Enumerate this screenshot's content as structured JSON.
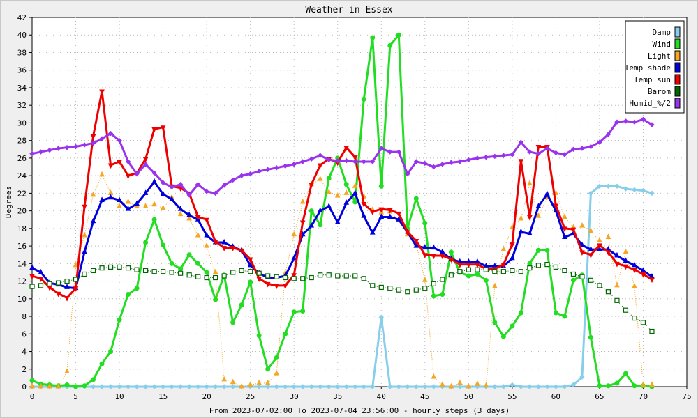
{
  "chart_data": {
    "type": "line",
    "title": "Weather in Essex",
    "xlabel": "From 2023-07-02:00 To 2023-07-04 23:56:00 - hourly steps (3 days)",
    "ylabel": "Degrees",
    "xlim": [
      0,
      75
    ],
    "ylim": [
      0,
      42
    ],
    "x_ticks": [
      0,
      5,
      10,
      15,
      20,
      25,
      30,
      35,
      40,
      45,
      50,
      55,
      60,
      65,
      70,
      75
    ],
    "y_ticks": [
      0,
      2,
      4,
      6,
      8,
      10,
      12,
      14,
      16,
      18,
      20,
      22,
      24,
      26,
      28,
      30,
      32,
      34,
      36,
      38,
      40,
      42
    ],
    "grid": "dotted",
    "legend_position": "top-right",
    "x": [
      0,
      1,
      2,
      3,
      4,
      5,
      6,
      7,
      8,
      9,
      10,
      11,
      12,
      13,
      14,
      15,
      16,
      17,
      18,
      19,
      20,
      21,
      22,
      23,
      24,
      25,
      26,
      27,
      28,
      29,
      30,
      31,
      32,
      33,
      34,
      35,
      36,
      37,
      38,
      39,
      40,
      41,
      42,
      43,
      44,
      45,
      46,
      47,
      48,
      49,
      50,
      51,
      52,
      53,
      54,
      55,
      56,
      57,
      58,
      59,
      60,
      61,
      62,
      63,
      64,
      65,
      66,
      67,
      68,
      69,
      70,
      71
    ],
    "series": [
      {
        "name": "Damp",
        "color": "#87ceeb",
        "marker": "diamond",
        "style": "solid",
        "width": 3,
        "values": [
          0,
          0,
          0,
          0,
          0,
          0,
          0,
          0,
          0,
          0,
          0,
          0,
          0,
          0,
          0,
          0,
          0,
          0,
          0,
          0,
          0,
          0,
          0,
          0,
          0,
          0,
          0,
          0,
          0,
          0,
          0,
          0,
          0,
          0,
          0,
          0,
          0,
          0,
          0,
          0,
          7.9,
          0,
          0,
          0,
          0,
          0,
          0,
          0,
          0,
          0,
          0,
          0,
          0,
          0,
          0,
          0.2,
          0,
          0,
          0,
          0,
          0,
          0,
          0.2,
          1.1,
          22,
          22.8,
          22.8,
          22.8,
          22.5,
          22.4,
          22.3,
          22
        ]
      },
      {
        "name": "Wind",
        "color": "#22dd22",
        "marker": "circle",
        "style": "solid",
        "width": 3,
        "values": [
          0.7,
          0.3,
          0.2,
          0.1,
          0.2,
          0,
          0.1,
          0.8,
          2.6,
          4,
          7.6,
          10.5,
          11.2,
          16.4,
          19,
          16.1,
          14,
          13.4,
          15,
          14,
          13,
          9.9,
          12.7,
          7.3,
          9.3,
          11.9,
          5.8,
          2,
          3.3,
          6,
          8.5,
          8.6,
          20,
          18.4,
          23.7,
          26,
          23,
          21,
          32.7,
          39.7,
          22.8,
          38.8,
          40,
          18,
          21.4,
          18.6,
          10.3,
          10.5,
          15.3,
          13,
          12.6,
          12.8,
          12.1,
          7.3,
          5.7,
          6.9,
          8.4,
          14,
          15.5,
          15.5,
          8.4,
          8,
          12.1,
          12.7,
          5.6,
          0.1,
          0.1,
          0.4,
          1.5,
          0.1,
          0.1,
          0
        ]
      },
      {
        "name": "Light",
        "color": "#f5a623",
        "marker": "triangle-up",
        "style": "dotted",
        "width": 1,
        "values": [
          0,
          0,
          0,
          0,
          1.7,
          13.8,
          17.2,
          21.8,
          24.1,
          22,
          20.5,
          21,
          20.5,
          20.5,
          20.7,
          20.3,
          21.5,
          19.6,
          19.1,
          17.2,
          16,
          13,
          0.8,
          0.5,
          0,
          0.2,
          0.4,
          0.4,
          1.5,
          12.9,
          17.3,
          21,
          23,
          23.6,
          22.1,
          21.7,
          22,
          22.8,
          21.6,
          20.1,
          19.8,
          19.9,
          18.9,
          17.3,
          16.2,
          12.1,
          1.1,
          0.2,
          0,
          0.4,
          0,
          0.3,
          0.1,
          11.4,
          15.6,
          18.1,
          19.1,
          23.1,
          19.4,
          21.5,
          22,
          19.3,
          18.1,
          18.3,
          17.7,
          16.6,
          17,
          11.5,
          15.3,
          11.4,
          0.2,
          0.2
        ]
      },
      {
        "name": "Temp_shade",
        "color": "#0000dd",
        "marker": "triangle-up",
        "style": "solid",
        "width": 3,
        "values": [
          13.5,
          13,
          11.8,
          11.6,
          11.3,
          11.2,
          15.3,
          18.8,
          21.2,
          21.5,
          21.2,
          20.2,
          20.8,
          22,
          23.3,
          21.9,
          21.3,
          20.2,
          19.5,
          19,
          17.2,
          16.4,
          16.4,
          15.9,
          15.5,
          13.8,
          12.9,
          12.4,
          12.4,
          12.6,
          14.6,
          17.3,
          18.3,
          20,
          20.5,
          18.7,
          20.9,
          22,
          19.4,
          17.5,
          19.3,
          19.3,
          19,
          17.6,
          16,
          15.8,
          15.8,
          15.3,
          14.5,
          14.2,
          14.2,
          14.2,
          13.7,
          13.7,
          13.7,
          14.6,
          17.6,
          17.4,
          20.5,
          21.9,
          20,
          17,
          17.4,
          16.1,
          15.6,
          15.6,
          15.6,
          14.9,
          14.3,
          13.8,
          13.2,
          12.5
        ]
      },
      {
        "name": "Temp_sun",
        "color": "#ee0000",
        "marker": "triangle-down",
        "style": "solid",
        "width": 3,
        "values": [
          12.6,
          12.3,
          11.3,
          10.6,
          10.1,
          11.2,
          20.5,
          28.5,
          33.6,
          25.2,
          25.6,
          24,
          24.3,
          25.9,
          29.3,
          29.5,
          22.8,
          22.6,
          22,
          19.3,
          19,
          16.5,
          15.8,
          15.8,
          15.5,
          14.5,
          12.3,
          11.7,
          11.5,
          11.5,
          12.7,
          18.7,
          23,
          25.2,
          25.9,
          25.5,
          27.2,
          26.1,
          20.8,
          19.9,
          20.2,
          20.1,
          19.7,
          17.6,
          16.6,
          15,
          14.9,
          14.9,
          14.5,
          13.9,
          13.9,
          13.9,
          13.4,
          13.4,
          13.9,
          16.2,
          25.7,
          19.3,
          27.3,
          27.3,
          20.6,
          18,
          17.9,
          15.3,
          15,
          16.1,
          15.3,
          14,
          13.7,
          13.3,
          12.8,
          12.2
        ]
      },
      {
        "name": "Barom",
        "color": "#006600",
        "marker": "square",
        "style": "dotted",
        "width": 1,
        "values": [
          11.4,
          11.5,
          11.7,
          11.8,
          12,
          12.2,
          12.8,
          13.2,
          13.5,
          13.6,
          13.6,
          13.5,
          13.3,
          13.2,
          13.1,
          13.1,
          13,
          12.9,
          12.7,
          12.5,
          12.4,
          12.4,
          12.6,
          13,
          13.2,
          13.1,
          12.9,
          12.6,
          12.5,
          12.4,
          12.3,
          12.3,
          12.4,
          12.7,
          12.7,
          12.6,
          12.6,
          12.6,
          12.3,
          11.5,
          11.3,
          11.2,
          11,
          10.8,
          11,
          11.2,
          11.7,
          12.2,
          12.7,
          13.1,
          13.3,
          13.3,
          13.3,
          13.1,
          13.1,
          13.2,
          13.1,
          13.5,
          13.8,
          13.9,
          13.6,
          13.2,
          12.8,
          12.5,
          12.1,
          11.5,
          10.8,
          9.8,
          8.7,
          7.8,
          7.3,
          6.3
        ]
      },
      {
        "name": "Humid_%/2",
        "color": "#9933ee",
        "marker": "diamond",
        "style": "solid",
        "width": 3,
        "values": [
          26.5,
          26.7,
          26.9,
          27.1,
          27.2,
          27.3,
          27.5,
          27.7,
          28.2,
          28.8,
          28,
          25.6,
          24.2,
          25.3,
          24.3,
          23.2,
          22.7,
          23,
          21.8,
          23,
          22.2,
          22,
          22.9,
          23.5,
          24,
          24.2,
          24.5,
          24.7,
          24.9,
          25.1,
          25.3,
          25.6,
          25.9,
          26.3,
          25.8,
          25.7,
          25.7,
          25.6,
          25.6,
          25.6,
          27.1,
          26.7,
          26.7,
          24.2,
          25.6,
          25.4,
          25,
          25.3,
          25.5,
          25.6,
          25.8,
          26,
          26.1,
          26.2,
          26.3,
          26.4,
          27.8,
          26.7,
          26.5,
          27.1,
          26.6,
          26.4,
          27,
          27.1,
          27.3,
          27.8,
          28.7,
          30.1,
          30.2,
          30.1,
          30.4,
          29.8
        ]
      }
    ]
  }
}
